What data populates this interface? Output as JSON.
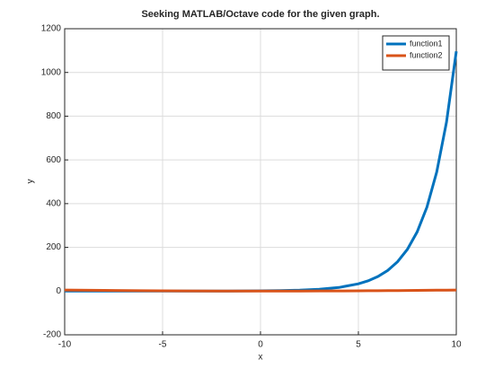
{
  "chart_data": {
    "type": "line",
    "title": "Seeking MATLAB/Octave code for the given graph.",
    "x_label": "x",
    "y_label": "y",
    "x": [
      -10,
      -8,
      -6,
      -4,
      -2,
      0,
      1,
      2,
      3,
      4,
      5,
      5.5,
      6,
      6.5,
      7,
      7.5,
      8,
      8.5,
      9,
      9.5,
      10
    ],
    "series": [
      {
        "name": "function1",
        "color": "#0072bd",
        "values": [
          0,
          0,
          0,
          0.1,
          0.2,
          1,
          2,
          4.1,
          8.2,
          16.4,
          33.1,
          47,
          66.7,
          94.6,
          134.3,
          190.6,
          270.4,
          383.7,
          544.6,
          772.8,
          1096.6
        ]
      },
      {
        "name": "function2",
        "color": "#d95319",
        "values": [
          5,
          3.2,
          1.8,
          0.8,
          0.2,
          0,
          0.05,
          0.2,
          0.45,
          0.8,
          1.25,
          1.5,
          1.8,
          2.1,
          2.45,
          2.8,
          3.2,
          3.6,
          4.05,
          4.5,
          5
        ]
      }
    ],
    "xlim": [
      -10,
      10
    ],
    "xticks": [
      -10,
      -5,
      0,
      5,
      10
    ],
    "ylim": [
      -200,
      1200
    ],
    "yticks": [
      -200,
      0,
      200,
      400,
      600,
      800,
      1000,
      1200
    ],
    "grid": true,
    "legend": "northeast"
  }
}
